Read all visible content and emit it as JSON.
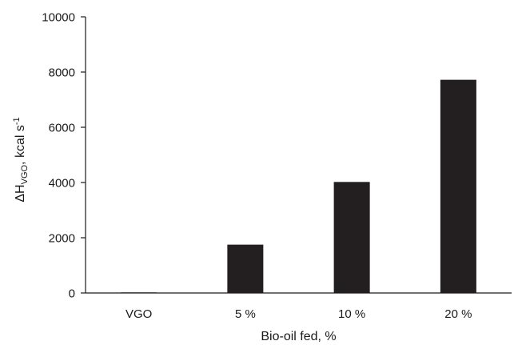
{
  "chart_data": {
    "type": "bar",
    "categories": [
      "VGO",
      "5 %",
      "10 %",
      "20 %"
    ],
    "values": [
      20,
      1750,
      4020,
      7720
    ],
    "title": "",
    "xlabel": "Bio-oil fed, %",
    "ylabel": {
      "prefix": "ΔH",
      "subscript": "VGO",
      "suffix": ", kcal s",
      "superscript": "-1"
    },
    "ylim": [
      0,
      10000
    ],
    "yticks": [
      "0",
      "2000",
      "4000",
      "6000",
      "8000",
      "10000"
    ],
    "grid": false,
    "legend": "none",
    "bar_color": "#231f20",
    "axis_color": "#1a1a1a"
  }
}
